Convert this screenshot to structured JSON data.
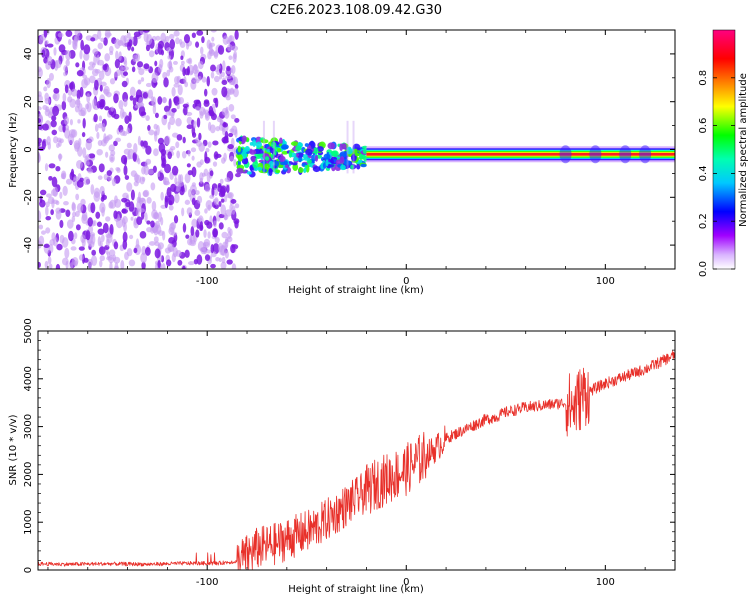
{
  "figure_title": "C2E6.2023.108.09.42.G30",
  "colors": {
    "snr_line": "#e8302a",
    "speckle": "#7b17e0",
    "speckle_light": "#c49af2",
    "frame": "#000000"
  },
  "chart_data": [
    {
      "type": "heatmap",
      "title": "",
      "xlabel": "Height of straight line (km)",
      "ylabel": "Frequency (Hz)",
      "xlim": [
        -185,
        135
      ],
      "ylim": [
        -50,
        50
      ],
      "xticks": [
        -100,
        0,
        100
      ],
      "yticks": [
        -40,
        -20,
        0,
        20,
        40
      ],
      "colorbar": {
        "label": "Normalized spectral amplitude",
        "range": [
          0,
          1
        ],
        "ticks": [
          0.0,
          0.2,
          0.4,
          0.6,
          0.8
        ],
        "tick_labels": [
          "0.0",
          "0.2",
          "0.4",
          "0.6",
          "0.8"
        ],
        "colormap": [
          "#ffffff",
          "#a000ff",
          "#0000ff",
          "#00ffff",
          "#00ff00",
          "#ffff00",
          "#ff8000",
          "#ff0000",
          "#ff0080"
        ]
      },
      "regions": [
        {
          "name": "noise",
          "x_range": [
            -185,
            -85
          ],
          "freq_range": [
            -50,
            50
          ],
          "amplitude": 0.1
        },
        {
          "name": "signal_onset",
          "x_range": [
            -85,
            -20
          ],
          "freq_center": -3,
          "freq_halfwidth": 8,
          "amplitude": 0.45
        },
        {
          "name": "carrier",
          "x_range": [
            -20,
            135
          ],
          "freq_center": -2,
          "freq_halfwidth": 1.5,
          "amplitude": 0.95
        }
      ]
    },
    {
      "type": "line",
      "title": "",
      "xlabel": "Height of straight line (km)",
      "ylabel": "SNR (10 * v/v)",
      "xlim": [
        -185,
        135
      ],
      "ylim": [
        0,
        5000
      ],
      "xticks": [
        -100,
        0,
        100
      ],
      "yticks": [
        0,
        1000,
        2000,
        3000,
        4000,
        5000
      ],
      "series": [
        {
          "x": [
            -185,
            -170,
            -150,
            -130,
            -110,
            -95,
            -85,
            -80,
            -75,
            -70,
            -65,
            -60,
            -55,
            -50,
            -45,
            -40,
            -35,
            -30,
            -25,
            -20,
            -15,
            -10,
            -5,
            0,
            5,
            10,
            15,
            20,
            25,
            30,
            35,
            40,
            45,
            50,
            60,
            70,
            80,
            84,
            86,
            88,
            90,
            95,
            100,
            110,
            120,
            130,
            135
          ],
          "values": [
            130,
            120,
            130,
            120,
            140,
            140,
            180,
            300,
            450,
            500,
            550,
            650,
            720,
            800,
            900,
            1050,
            1200,
            1350,
            1500,
            1650,
            1800,
            1900,
            2000,
            2100,
            2250,
            2400,
            2550,
            2750,
            2850,
            2950,
            3050,
            3150,
            3200,
            3300,
            3400,
            3450,
            3500,
            3400,
            3500,
            3650,
            3700,
            3800,
            3900,
            4050,
            4200,
            4400,
            4500
          ]
        }
      ]
    }
  ]
}
